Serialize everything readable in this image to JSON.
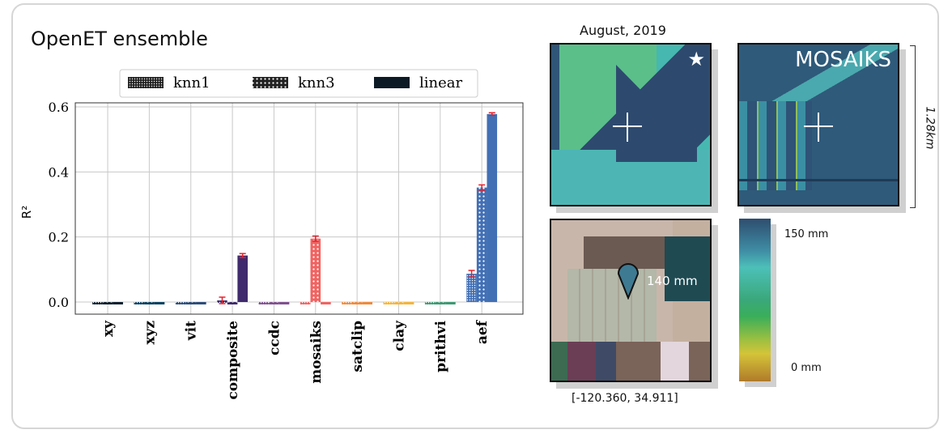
{
  "title": "OpenET ensemble",
  "chart_data": {
    "type": "bar",
    "ylabel": "R²",
    "ylim": [
      -0.03,
      0.61
    ],
    "yticks": [
      "0.0",
      "0.2",
      "0.4",
      "0.6"
    ],
    "grid": true,
    "legend_placement": "top-center",
    "categories": [
      "xy",
      "xyz",
      "vit",
      "composite",
      "ccdc",
      "mosaiks",
      "satclip",
      "clay",
      "prithvi",
      "aef"
    ],
    "category_colors": [
      "#0e1f2e",
      "#0b4262",
      "#2d4d7a",
      "#3e2a6c",
      "#80508f",
      "#ef6462",
      "#f08a3c",
      "#f5b53c",
      "#3d9a74",
      "#4270b5"
    ],
    "series": [
      {
        "name": "knn1",
        "pattern": "dense-dots",
        "values": [
          -0.005,
          -0.005,
          -0.005,
          0.005,
          -0.005,
          -0.005,
          -0.005,
          -0.005,
          -0.005,
          0.087
        ],
        "errors": [
          0,
          0,
          0,
          0.01,
          0,
          0,
          0,
          0,
          0,
          0.01
        ]
      },
      {
        "name": "knn3",
        "pattern": "dots",
        "values": [
          -0.005,
          -0.005,
          -0.005,
          -0.005,
          -0.005,
          0.195,
          -0.005,
          -0.005,
          -0.005,
          0.352
        ],
        "errors": [
          0,
          0,
          0,
          0,
          0,
          0.008,
          0,
          0,
          0,
          0.008
        ]
      },
      {
        "name": "linear",
        "pattern": "solid",
        "values": [
          -0.005,
          -0.005,
          -0.005,
          0.143,
          -0.005,
          -0.005,
          -0.005,
          -0.005,
          -0.005,
          0.578
        ],
        "errors": [
          0,
          0,
          0,
          0.006,
          0,
          0,
          0,
          0,
          0,
          0.004
        ]
      }
    ],
    "error_bar_color": "#e8202a"
  },
  "maps": {
    "date_label": "August, 2019",
    "star_icon": "star-icon",
    "model_label": "MOSAIKS",
    "scale_label": "1.28km",
    "pin_value": "140 mm",
    "coordinates": "[-120.360, 34.911]",
    "colorbar_max": "150 mm",
    "colorbar_min": "0 mm"
  }
}
